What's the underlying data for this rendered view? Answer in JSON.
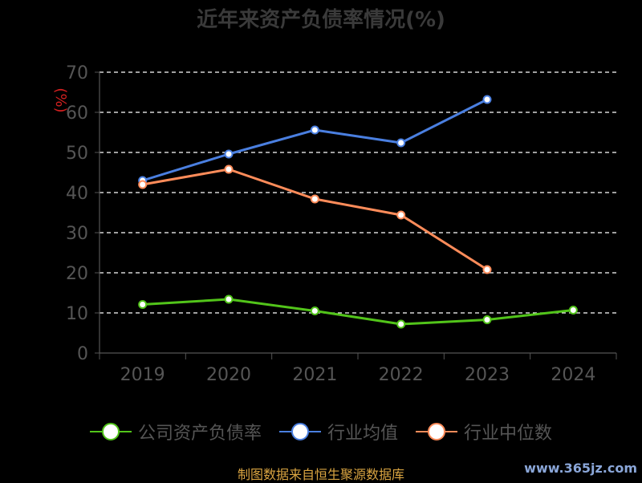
{
  "chart_data": {
    "type": "line",
    "title": "近年来资产负债率情况(%)",
    "ylabel": "(%)",
    "xlabel": "",
    "categories": [
      "2019",
      "2020",
      "2021",
      "2022",
      "2023",
      "2024"
    ],
    "y_ticks": [
      "0",
      "10",
      "20",
      "30",
      "40",
      "50",
      "60",
      "70"
    ],
    "ylim": [
      0,
      70
    ],
    "grid": true,
    "legend_position": "bottom",
    "series": [
      {
        "name": "公司资产负债率",
        "color": "#52c41a",
        "values": [
          12.1,
          13.4,
          10.5,
          7.2,
          8.3,
          10.7
        ]
      },
      {
        "name": "行业均值",
        "color": "#4a7fe0",
        "values": [
          43.0,
          49.6,
          55.6,
          52.4,
          63.2,
          null
        ]
      },
      {
        "name": "行业中位数",
        "color": "#ff8c5a",
        "values": [
          42.0,
          45.8,
          38.4,
          34.4,
          20.8,
          null
        ]
      }
    ]
  },
  "footer": {
    "source": "制图数据来自恒生聚源数据库",
    "watermark": "www.365jz.com"
  }
}
